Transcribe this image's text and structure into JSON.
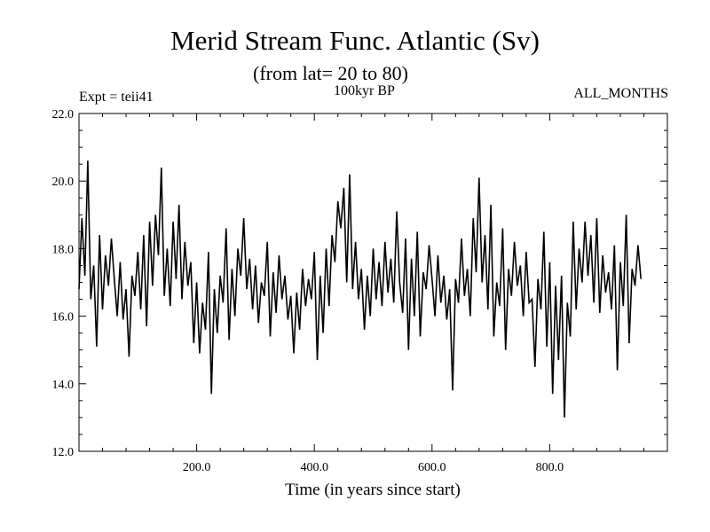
{
  "chart_data": {
    "type": "line",
    "title": "Merid Stream Func. Atlantic (Sv)",
    "subtitle": "(from lat= 20 to 80)",
    "annotations": {
      "left": "Expt = teii41",
      "center": "100kyr BP",
      "right": "ALL_MONTHS"
    },
    "xlabel": "Time (in years since start)",
    "ylabel": "",
    "xlim": [
      0,
      1000
    ],
    "ylim": [
      12.0,
      22.0
    ],
    "x_ticks": [
      200,
      400,
      600,
      800
    ],
    "x_tick_labels": [
      "200.0",
      "400.0",
      "600.0",
      "800.0"
    ],
    "y_ticks": [
      12,
      14,
      16,
      18,
      20,
      22
    ],
    "y_tick_labels": [
      "12.0",
      "14.0",
      "16.0",
      "18.0",
      "20.0",
      "22.0"
    ],
    "grid": false,
    "series": [
      {
        "color": "#000000",
        "x_start": 0,
        "x_step": 5,
        "values": [
          16.8,
          18.9,
          17.2,
          20.6,
          16.5,
          17.5,
          15.1,
          18.4,
          16.2,
          17.8,
          16.9,
          18.3,
          17.1,
          16.0,
          17.6,
          15.9,
          16.8,
          14.8,
          17.2,
          16.6,
          17.9,
          16.2,
          18.4,
          15.7,
          18.8,
          16.9,
          19.0,
          17.8,
          20.4,
          16.6,
          18.0,
          16.3,
          18.8,
          17.1,
          19.3,
          16.5,
          18.2,
          16.9,
          17.6,
          15.2,
          17.0,
          14.9,
          16.4,
          15.6,
          17.9,
          13.7,
          16.8,
          15.5,
          17.2,
          16.4,
          18.6,
          15.3,
          17.4,
          16.0,
          18.0,
          17.2,
          18.9,
          16.8,
          17.7,
          16.2,
          17.5,
          15.8,
          17.0,
          16.6,
          18.2,
          15.4,
          17.3,
          16.1,
          17.8,
          16.5,
          17.2,
          15.9,
          16.6,
          14.9,
          16.7,
          15.6,
          17.4,
          16.3,
          17.1,
          16.5,
          17.9,
          14.7,
          17.2,
          15.5,
          18.0,
          16.3,
          18.4,
          17.6,
          19.4,
          18.6,
          19.8,
          17.0,
          20.2,
          16.8,
          18.2,
          16.5,
          17.4,
          15.6,
          17.2,
          16.0,
          18.0,
          16.5,
          17.6,
          16.3,
          18.2,
          16.7,
          17.7,
          16.4,
          19.1,
          17.0,
          16.1,
          18.3,
          15.0,
          17.7,
          16.0,
          18.5,
          15.4,
          17.3,
          16.8,
          18.1,
          17.1,
          16.0,
          17.8,
          16.4,
          17.2,
          15.9,
          16.8,
          13.8,
          17.1,
          16.4,
          18.3,
          16.6,
          17.4,
          16.0,
          18.9,
          17.3,
          20.1,
          17.0,
          18.4,
          16.2,
          19.3,
          15.4,
          17.0,
          16.3,
          18.6,
          15.0,
          17.4,
          16.6,
          18.2,
          16.9,
          17.5,
          16.0,
          17.9,
          16.4,
          16.5,
          14.5,
          17.1,
          16.2,
          18.5,
          15.1,
          17.6,
          13.7,
          16.9,
          14.7,
          17.2,
          13.0,
          16.4,
          15.4,
          18.8,
          16.2,
          18.0,
          17.0,
          18.8,
          17.2,
          18.4,
          16.4,
          18.9,
          16.1,
          17.8,
          16.7,
          17.3,
          16.2,
          18.1,
          14.4,
          17.6,
          16.3,
          19.0,
          15.2,
          17.4,
          16.9,
          18.1,
          17.1
        ]
      }
    ]
  }
}
